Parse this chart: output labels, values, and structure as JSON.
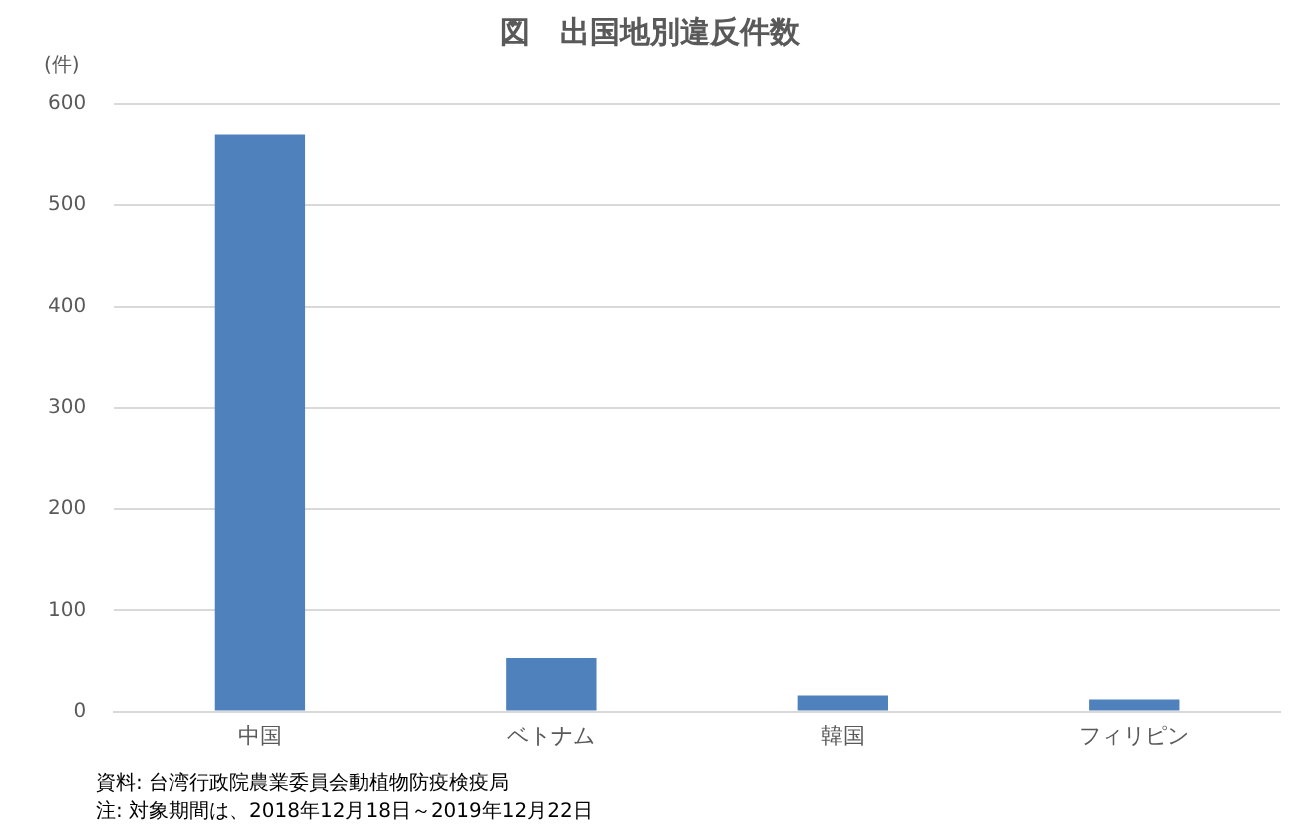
{
  "chart_data": {
    "type": "bar",
    "title": "図　出国地別違反件数",
    "ylabel": "(件)",
    "categories": [
      "中国",
      "ベトナム",
      "韓国",
      "フィリピン"
    ],
    "values": [
      570,
      53,
      16,
      12
    ],
    "color": "#4f81bd",
    "ylim": [
      0,
      600
    ],
    "yticks": [
      0,
      100,
      200,
      300,
      400,
      500,
      600
    ],
    "grid": "y",
    "annotations": [
      "資料: 台湾行政院農業委員会動植物防疫検疫局",
      "注: 対象期間は、2018年12月18日～2019年12月22日"
    ]
  }
}
